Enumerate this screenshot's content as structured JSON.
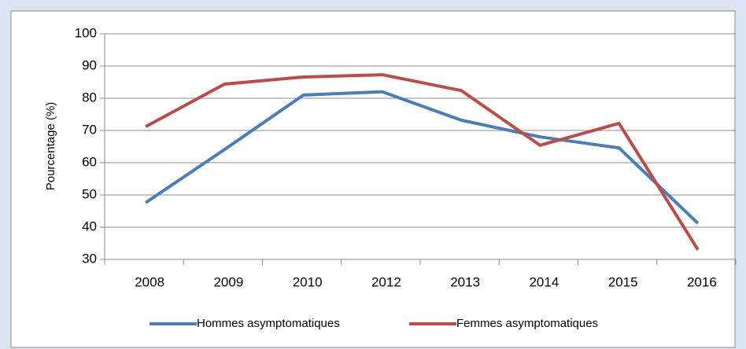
{
  "chart_data": {
    "type": "line",
    "y_label": "Pourcentage (%)",
    "categories": [
      "2008",
      "2009",
      "2010",
      "2012",
      "2013",
      "2014",
      "2015",
      "2016"
    ],
    "series": [
      {
        "name": "Hommes asymptomatiques",
        "color": "#4a7ebb",
        "values": [
          47.6,
          64.1,
          81,
          82,
          73.2,
          68,
          64.6,
          41.2
        ]
      },
      {
        "name": "Femmes asymptomatiques",
        "color": "#be4b48",
        "values": [
          71.2,
          84.4,
          86.6,
          87.3,
          82.4,
          65.4,
          72.2,
          33
        ]
      }
    ],
    "ylim": [
      30,
      100
    ],
    "yticks": [
      30,
      40,
      50,
      60,
      70,
      80,
      90,
      100
    ],
    "grid": true,
    "legend": "bottom"
  }
}
